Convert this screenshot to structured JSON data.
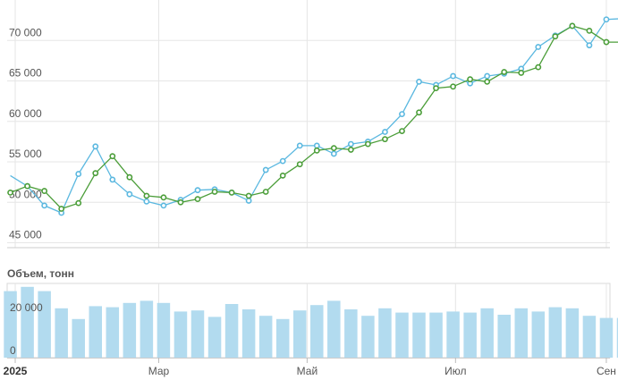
{
  "chart_data": [
    {
      "type": "line",
      "title": "",
      "xlabel": "",
      "ylabel": "",
      "ylim": [
        45000,
        75000
      ],
      "y_ticks": [
        {
          "value": 45000,
          "label": "45 000"
        },
        {
          "value": 50000,
          "label": "50 000"
        },
        {
          "value": 55000,
          "label": "55 000"
        },
        {
          "value": 60000,
          "label": "60 000"
        },
        {
          "value": 65000,
          "label": "65 000"
        },
        {
          "value": 70000,
          "label": "70 000"
        }
      ],
      "grid": true,
      "series": [
        {
          "color": "#5bb8e0",
          "points": [
            [
              "2024-12-30",
              53300
            ],
            [
              "2025-01-06",
              52000
            ],
            [
              "2025-01-13",
              49600
            ],
            [
              "2025-01-20",
              48700
            ],
            [
              "2025-01-27",
              53500
            ],
            [
              "2025-02-03",
              56900
            ],
            [
              "2025-02-10",
              52800
            ],
            [
              "2025-02-17",
              51000
            ],
            [
              "2025-02-24",
              50100
            ],
            [
              "2025-03-03",
              49600
            ],
            [
              "2025-03-10",
              50300
            ],
            [
              "2025-03-17",
              51500
            ],
            [
              "2025-03-24",
              51600
            ],
            [
              "2025-03-31",
              51200
            ],
            [
              "2025-04-07",
              50200
            ],
            [
              "2025-04-14",
              54000
            ],
            [
              "2025-04-21",
              55100
            ],
            [
              "2025-04-28",
              57000
            ],
            [
              "2025-05-05",
              57000
            ],
            [
              "2025-05-12",
              56000
            ],
            [
              "2025-05-19",
              57200
            ],
            [
              "2025-05-26",
              57500
            ],
            [
              "2025-06-02",
              58700
            ],
            [
              "2025-06-09",
              60900
            ],
            [
              "2025-06-16",
              64900
            ],
            [
              "2025-06-23",
              64500
            ],
            [
              "2025-06-30",
              65600
            ],
            [
              "2025-07-07",
              64700
            ],
            [
              "2025-07-14",
              65600
            ],
            [
              "2025-07-21",
              65900
            ],
            [
              "2025-07-28",
              66500
            ],
            [
              "2025-08-04",
              69200
            ],
            [
              "2025-08-11",
              70600
            ],
            [
              "2025-08-18",
              71800
            ],
            [
              "2025-08-25",
              69400
            ],
            [
              "2025-09-01",
              72600
            ],
            [
              "2025-09-08",
              72700
            ]
          ]
        },
        {
          "color": "#4c9e3a",
          "points": [
            [
              "2024-12-30",
              51200
            ],
            [
              "2025-01-06",
              52000
            ],
            [
              "2025-01-13",
              51400
            ],
            [
              "2025-01-20",
              49200
            ],
            [
              "2025-01-27",
              49900
            ],
            [
              "2025-02-03",
              53600
            ],
            [
              "2025-02-10",
              55700
            ],
            [
              "2025-02-17",
              53100
            ],
            [
              "2025-02-24",
              50800
            ],
            [
              "2025-03-03",
              50600
            ],
            [
              "2025-03-10",
              50000
            ],
            [
              "2025-03-17",
              50400
            ],
            [
              "2025-03-24",
              51300
            ],
            [
              "2025-03-31",
              51200
            ],
            [
              "2025-04-07",
              50800
            ],
            [
              "2025-04-14",
              51300
            ],
            [
              "2025-04-21",
              53300
            ],
            [
              "2025-04-28",
              54700
            ],
            [
              "2025-05-05",
              56400
            ],
            [
              "2025-05-12",
              56700
            ],
            [
              "2025-05-19",
              56500
            ],
            [
              "2025-05-26",
              57200
            ],
            [
              "2025-06-02",
              57800
            ],
            [
              "2025-06-09",
              58800
            ],
            [
              "2025-06-16",
              61100
            ],
            [
              "2025-06-23",
              64100
            ],
            [
              "2025-06-30",
              64300
            ],
            [
              "2025-07-07",
              65200
            ],
            [
              "2025-07-14",
              64900
            ],
            [
              "2025-07-21",
              66100
            ],
            [
              "2025-07-28",
              66000
            ],
            [
              "2025-08-04",
              66700
            ],
            [
              "2025-08-11",
              70500
            ],
            [
              "2025-08-18",
              71800
            ],
            [
              "2025-08-25",
              71200
            ],
            [
              "2025-09-01",
              69800
            ],
            [
              "2025-09-08",
              69800
            ]
          ]
        }
      ]
    },
    {
      "type": "bar",
      "title": "Объем, тонн",
      "ylim": [
        0,
        35000
      ],
      "y_ticks": [
        {
          "value": 0,
          "label": "0"
        },
        {
          "value": 20000,
          "label": "20 000"
        }
      ],
      "color": "#b2dbef",
      "x": [
        "2024-12-30",
        "2025-01-06",
        "2025-01-13",
        "2025-01-20",
        "2025-01-27",
        "2025-02-03",
        "2025-02-10",
        "2025-02-17",
        "2025-02-24",
        "2025-03-03",
        "2025-03-10",
        "2025-03-17",
        "2025-03-24",
        "2025-03-31",
        "2025-04-07",
        "2025-04-14",
        "2025-04-21",
        "2025-04-28",
        "2025-05-05",
        "2025-05-12",
        "2025-05-19",
        "2025-05-26",
        "2025-06-02",
        "2025-06-09",
        "2025-06-16",
        "2025-06-23",
        "2025-06-30",
        "2025-07-07",
        "2025-07-14",
        "2025-07-21",
        "2025-07-28",
        "2025-08-04",
        "2025-08-11",
        "2025-08-18",
        "2025-08-25",
        "2025-09-01",
        "2025-09-08"
      ],
      "values": [
        31000,
        33000,
        31000,
        23000,
        18000,
        24000,
        23500,
        25500,
        26500,
        25500,
        21500,
        22000,
        19000,
        25000,
        22500,
        19500,
        18000,
        22000,
        24500,
        26500,
        22500,
        19500,
        23000,
        21000,
        21000,
        21000,
        21500,
        21000,
        23000,
        20000,
        23000,
        21500,
        23500,
        23000,
        19500,
        18500,
        18500
      ]
    }
  ],
  "x_axis": {
    "ticks": [
      {
        "date": "2025-01-01",
        "label": "2025",
        "bold": true
      },
      {
        "date": "2025-03-01",
        "label": "Мар",
        "bold": false
      },
      {
        "date": "2025-05-01",
        "label": "Май",
        "bold": false
      },
      {
        "date": "2025-07-01",
        "label": "Июл",
        "bold": false
      },
      {
        "date": "2025-09-01",
        "label": "Сен",
        "bold": false
      }
    ]
  }
}
